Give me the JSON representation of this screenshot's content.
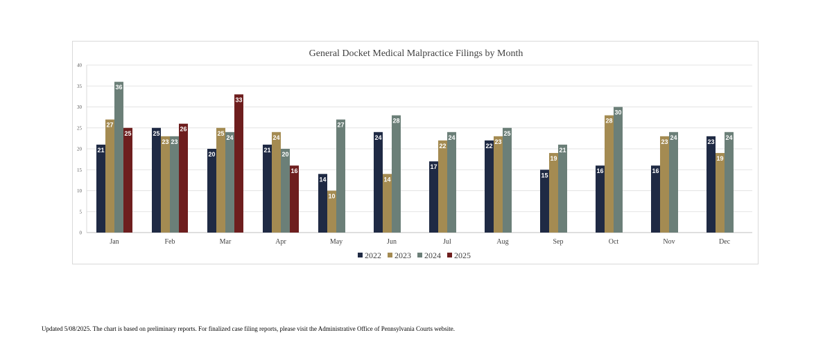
{
  "chart_data": {
    "type": "bar",
    "title": "General Docket Medical Malpractice Filings by Month",
    "xlabel": "",
    "ylabel": "",
    "ylim": [
      0,
      40
    ],
    "yticks": [
      0,
      5,
      10,
      15,
      20,
      25,
      30,
      35,
      40
    ],
    "grid": true,
    "legend_position": "bottom",
    "categories": [
      "Jan",
      "Feb",
      "Mar",
      "Apr",
      "May",
      "Jun",
      "Jul",
      "Aug",
      "Sep",
      "Oct",
      "Nov",
      "Dec"
    ],
    "series": [
      {
        "name": "2022",
        "color": "#1f2a44",
        "values": [
          21,
          25,
          20,
          21,
          14,
          24,
          17,
          22,
          15,
          16,
          16,
          23
        ]
      },
      {
        "name": "2023",
        "color": "#a48b52",
        "values": [
          27,
          23,
          25,
          24,
          10,
          14,
          22,
          23,
          19,
          28,
          23,
          19
        ]
      },
      {
        "name": "2024",
        "color": "#6b7f78",
        "values": [
          36,
          23,
          24,
          20,
          27,
          28,
          24,
          25,
          21,
          30,
          24,
          24
        ]
      },
      {
        "name": "2025",
        "color": "#6e1e1e",
        "values": [
          25,
          26,
          33,
          16,
          null,
          null,
          null,
          null,
          null,
          null,
          null,
          null
        ]
      }
    ]
  },
  "footnote": "Updated 5/08/2025.  The chart is based on preliminary reports.  For finalized case filing reports, please visit the Administrative Office of Pennsylvania Courts website."
}
